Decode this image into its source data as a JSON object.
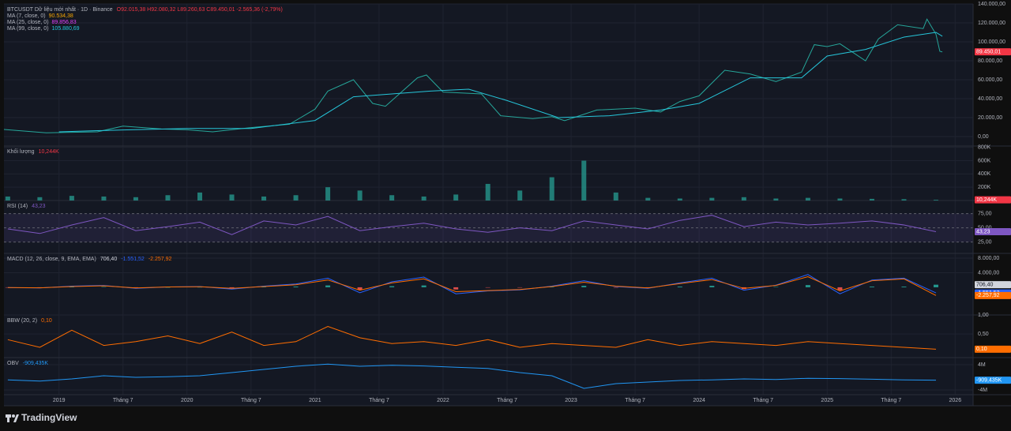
{
  "brand": "TradingView",
  "chart_data": [
    {
      "type": "line",
      "title": "BTCUSDT Dữ liệu mới nhất · 1D · Binance",
      "ohlc": "O92.015,38 H92.080,32 L89.260,63 C89.450,01 -2.565,36 (-2,79%)",
      "legend": [
        {
          "name": "MA (7, close, 0)",
          "value": "90.534,38",
          "color": "#f7a600"
        },
        {
          "name": "MA (25, close, 0)",
          "value": "89.856,83",
          "color": "#e040fb"
        },
        {
          "name": "MA (99, close, 0)",
          "value": "105.880,69",
          "color": "#26c6da"
        }
      ],
      "series": [
        {
          "color": "#26a69a",
          "x": [
            2018.57,
            2018.9,
            2019.3,
            2019.5,
            2019.8,
            2020.0,
            2020.2,
            2020.5,
            2020.8,
            2021.0,
            2021.1,
            2021.3,
            2021.45,
            2021.55,
            2021.8,
            2021.87,
            2022.0,
            2022.3,
            2022.45,
            2022.7,
            2022.85,
            2022.95,
            2023.2,
            2023.5,
            2023.7,
            2023.85,
            2024.0,
            2024.2,
            2024.4,
            2024.6,
            2024.8,
            2024.9,
            2025.0,
            2025.1,
            2025.3,
            2025.4,
            2025.55,
            2025.75,
            2025.78,
            2025.85,
            2025.88,
            2025.9
          ],
          "values": [
            7500,
            4000,
            5000,
            11000,
            8000,
            7200,
            5000,
            9500,
            13000,
            29000,
            48000,
            60000,
            35000,
            32000,
            62000,
            65000,
            47000,
            45000,
            22000,
            19000,
            21000,
            16800,
            28000,
            30000,
            26000,
            37000,
            43000,
            70000,
            66000,
            58000,
            68000,
            97000,
            95000,
            98000,
            80000,
            103000,
            118000,
            114000,
            124000,
            108000,
            90000,
            89450.01
          ]
        },
        {
          "color": "#26c6da",
          "x": [
            2019.0,
            2019.5,
            2020.0,
            2020.5,
            2021.0,
            2021.3,
            2021.6,
            2021.9,
            2022.2,
            2022.5,
            2022.9,
            2023.3,
            2023.7,
            2024.0,
            2024.4,
            2024.8,
            2025.0,
            2025.3,
            2025.6,
            2025.85,
            2025.9
          ],
          "values": [
            5000,
            7000,
            8500,
            8500,
            17000,
            42000,
            45000,
            48000,
            50000,
            38000,
            20000,
            22000,
            28000,
            35000,
            62000,
            62000,
            85000,
            92000,
            105000,
            110000,
            105880.69
          ]
        }
      ],
      "last_value": {
        "value": 89450.01,
        "label": "89.450,01",
        "color": "#f23645"
      },
      "ylim": [
        -10000,
        140000
      ],
      "yticks": [
        {
          "value": 0,
          "label": "0,00"
        },
        {
          "value": 20000,
          "label": "20.000,00"
        },
        {
          "value": 40000,
          "label": "40.000,00"
        },
        {
          "value": 60000,
          "label": "60.000,00"
        },
        {
          "value": 80000,
          "label": "80.000,00"
        },
        {
          "value": 100000,
          "label": "100.000,00"
        },
        {
          "value": 120000,
          "label": "120.000,00"
        },
        {
          "value": 140000,
          "label": "140.000,00"
        }
      ]
    },
    {
      "type": "bar",
      "title": "Khối lượng",
      "x": [
        2018.6,
        2018.85,
        2019.1,
        2019.35,
        2019.6,
        2019.85,
        2020.1,
        2020.35,
        2020.6,
        2020.85,
        2021.1,
        2021.35,
        2021.6,
        2021.85,
        2022.1,
        2022.35,
        2022.6,
        2022.85,
        2023.1,
        2023.35,
        2023.6,
        2023.85,
        2024.1,
        2024.35,
        2024.6,
        2024.85,
        2025.1,
        2025.35,
        2025.6,
        2025.85
      ],
      "series": [
        {
          "color": "#26a69a",
          "values": [
            60000,
            50000,
            70000,
            60000,
            50000,
            80000,
            120000,
            90000,
            60000,
            80000,
            200000,
            150000,
            80000,
            60000,
            90000,
            250000,
            150000,
            350000,
            600000,
            120000,
            40000,
            30000,
            40000,
            50000,
            30000,
            40000,
            30000,
            25000,
            20000,
            10244
          ]
        }
      ],
      "last_value": {
        "value": 10244,
        "label": "10,244K",
        "color": "#f23645"
      },
      "ylim": [
        0,
        820000
      ],
      "yticks": [
        {
          "value": 200000,
          "label": "200K"
        },
        {
          "value": 400000,
          "label": "400K"
        },
        {
          "value": 600000,
          "label": "600K"
        },
        {
          "value": 800000,
          "label": "800K"
        }
      ]
    },
    {
      "type": "line",
      "title": "RSI (14)",
      "x": [
        2018.6,
        2018.85,
        2019.1,
        2019.35,
        2019.6,
        2019.85,
        2020.1,
        2020.35,
        2020.6,
        2020.85,
        2021.1,
        2021.35,
        2021.6,
        2021.85,
        2022.1,
        2022.35,
        2022.6,
        2022.85,
        2023.1,
        2023.35,
        2023.6,
        2023.85,
        2024.1,
        2024.35,
        2024.6,
        2024.85,
        2025.1,
        2025.35,
        2025.6,
        2025.85
      ],
      "series": [
        {
          "color": "#7e57c2",
          "values": [
            48,
            40,
            55,
            68,
            45,
            52,
            60,
            38,
            62,
            55,
            70,
            45,
            52,
            58,
            48,
            42,
            50,
            45,
            62,
            55,
            48,
            63,
            72,
            52,
            60,
            55,
            58,
            62,
            55,
            43.23
          ]
        }
      ],
      "last_value": {
        "value": 43.23,
        "label": "43,23",
        "color": "#7e57c2"
      },
      "ylim": [
        5,
        98
      ],
      "yticks": [
        {
          "value": 25,
          "label": "25,00"
        },
        {
          "value": 50,
          "label": "50,00"
        },
        {
          "value": 75,
          "label": "75,00"
        }
      ]
    },
    {
      "type": "line",
      "title": "MACD (12, 26, close, 9, EMA, EMA)",
      "x": [
        2018.6,
        2018.85,
        2019.1,
        2019.35,
        2019.6,
        2019.85,
        2020.1,
        2020.35,
        2020.6,
        2020.85,
        2021.1,
        2021.35,
        2021.6,
        2021.85,
        2022.1,
        2022.35,
        2022.6,
        2022.85,
        2023.1,
        2023.35,
        2023.6,
        2023.85,
        2024.1,
        2024.35,
        2024.6,
        2024.85,
        2025.1,
        2025.35,
        2025.6,
        2025.85
      ],
      "series": [
        {
          "type": "bar",
          "color": "#26a69a",
          "negative_color": "#ef5350",
          "values": [
            -50,
            -50,
            100,
            100,
            -100,
            0,
            50,
            -200,
            100,
            200,
            500,
            -700,
            300,
            500,
            -600,
            -100,
            -100,
            100,
            400,
            -100,
            -100,
            200,
            400,
            -500,
            100,
            600,
            -800,
            200,
            200,
            706.4
          ],
          "last_value": {
            "value": 706.4,
            "label": "706,40",
            "color": "#d1d4dc"
          }
        },
        {
          "color": "#2962ff",
          "values": [
            -100,
            -200,
            300,
            500,
            -300,
            100,
            200,
            -500,
            300,
            900,
            2500,
            -1500,
            1500,
            2800,
            -1800,
            -1000,
            -700,
            300,
            1800,
            200,
            -300,
            1200,
            2500,
            -800,
            600,
            3500,
            -1800,
            2000,
            2500,
            -1551.52
          ],
          "last_value": {
            "value": -1551.52,
            "label": "-1.551,52",
            "color": "#2962ff"
          }
        },
        {
          "color": "#ff6d00",
          "values": [
            -50,
            -150,
            200,
            400,
            -200,
            100,
            150,
            -300,
            200,
            700,
            2000,
            -800,
            1200,
            2300,
            -1200,
            -900,
            -600,
            200,
            1400,
            300,
            -200,
            1000,
            2100,
            -300,
            500,
            2900,
            -1000,
            1800,
            2300,
            -2257.92
          ],
          "last_value": {
            "value": -2257.92,
            "label": "-2.257,92",
            "color": "#ff6d00"
          }
        }
      ],
      "ylim": [
        -7600,
        9300
      ],
      "yticks": [
        {
          "value": 4000,
          "label": "4.000,00"
        },
        {
          "value": 8000,
          "label": "8.000,00"
        }
      ]
    },
    {
      "type": "line",
      "title": "BBW (20, 2)",
      "x": [
        2018.6,
        2018.85,
        2019.1,
        2019.35,
        2019.6,
        2019.85,
        2020.1,
        2020.35,
        2020.6,
        2020.85,
        2021.1,
        2021.35,
        2021.6,
        2021.85,
        2022.1,
        2022.35,
        2022.6,
        2022.85,
        2023.1,
        2023.35,
        2023.6,
        2023.85,
        2024.1,
        2024.35,
        2024.6,
        2024.85,
        2025.1,
        2025.35,
        2025.6,
        2025.85
      ],
      "series": [
        {
          "color": "#ff6d00",
          "values": [
            0.35,
            0.15,
            0.6,
            0.2,
            0.3,
            0.45,
            0.25,
            0.55,
            0.2,
            0.3,
            0.7,
            0.4,
            0.25,
            0.3,
            0.2,
            0.35,
            0.15,
            0.25,
            0.2,
            0.15,
            0.35,
            0.2,
            0.3,
            0.25,
            0.2,
            0.3,
            0.25,
            0.2,
            0.15,
            0.1
          ]
        }
      ],
      "last_value": {
        "value": 0.1,
        "label": "0,10",
        "color": "#ff6d00"
      },
      "ylim": [
        -0.12,
        1.0
      ],
      "yticks": [
        {
          "value": 0.5,
          "label": "0,50"
        },
        {
          "value": 1,
          "label": "1,00"
        }
      ]
    },
    {
      "type": "line",
      "title": "OBV",
      "x": [
        2018.6,
        2018.85,
        2019.1,
        2019.35,
        2019.6,
        2019.85,
        2020.1,
        2020.35,
        2020.6,
        2020.85,
        2021.1,
        2021.35,
        2021.6,
        2021.85,
        2022.1,
        2022.35,
        2022.6,
        2022.85,
        2023.1,
        2023.35,
        2023.6,
        2023.85,
        2024.1,
        2024.35,
        2024.6,
        2024.85,
        2025.1,
        2025.35,
        2025.6,
        2025.85
      ],
      "series": [
        {
          "color": "#2196f3",
          "values": [
            -800000,
            -1200000,
            -500000,
            500000,
            0,
            200000,
            500000,
            1500000,
            2500000,
            3500000,
            4200000,
            3500000,
            3800000,
            3600000,
            3200000,
            2800000,
            1500000,
            500000,
            -3500000,
            -2000000,
            -1500000,
            -1000000,
            -800000,
            -500000,
            -700000,
            -300000,
            -400000,
            -600000,
            -800000,
            -909435
          ]
        }
      ],
      "last_value": {
        "value": -909435,
        "label": "-909,435K",
        "color": "#2196f3"
      },
      "ylim": [
        -5500000,
        6250000
      ],
      "yticks": [
        {
          "value": -4000000,
          "label": "-4M"
        },
        {
          "value": 4000000,
          "label": "4M"
        }
      ],
      "xlim": [
        2018.57,
        2026.14
      ],
      "xticks": [
        {
          "value": 2019,
          "label": "2019"
        },
        {
          "value": 2019.5,
          "label": "Tháng 7"
        },
        {
          "value": 2020,
          "label": "2020"
        },
        {
          "value": 2020.5,
          "label": "Tháng 7"
        },
        {
          "value": 2021,
          "label": "2021"
        },
        {
          "value": 2021.5,
          "label": "Tháng 7"
        },
        {
          "value": 2022,
          "label": "2022"
        },
        {
          "value": 2022.5,
          "label": "Tháng 7"
        },
        {
          "value": 2023,
          "label": "2023"
        },
        {
          "value": 2023.5,
          "label": "Tháng 7"
        },
        {
          "value": 2024,
          "label": "2024"
        },
        {
          "value": 2024.5,
          "label": "Tháng 7"
        },
        {
          "value": 2025,
          "label": "2025"
        },
        {
          "value": 2025.5,
          "label": "Tháng 7"
        },
        {
          "value": 2026,
          "label": "2026"
        }
      ]
    }
  ]
}
